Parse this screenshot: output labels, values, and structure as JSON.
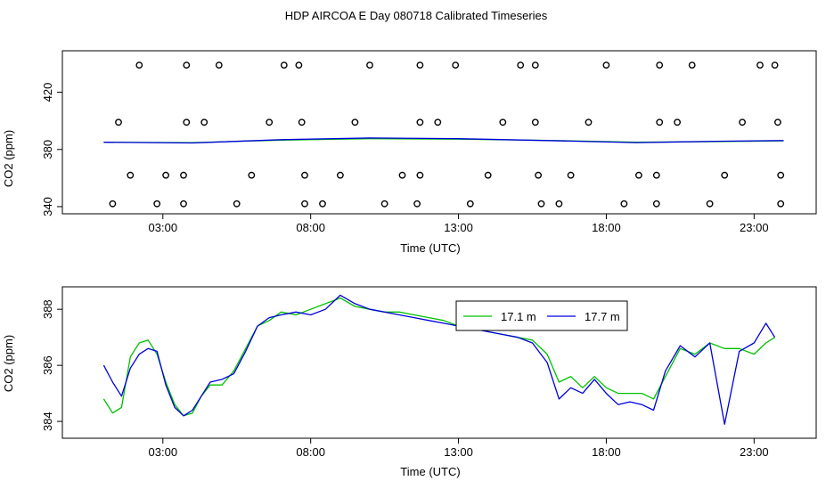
{
  "figure_title": "HDP AIRCOA E  Day 080718  Calibrated Timeseries",
  "colors": {
    "series_17_1": "#00c000",
    "series_17_7": "#0000dd",
    "axis": "#000000",
    "marker": "#000000"
  },
  "chart_data": [
    {
      "type": "scatter",
      "title": "",
      "xlabel": "Time (UTC)",
      "ylabel": "CO2 (ppm)",
      "x_ticks": [
        "03:00",
        "08:00",
        "13:00",
        "18:00",
        "23:00"
      ],
      "y_ticks": [
        "340",
        "380",
        "420"
      ],
      "xlim_hours": [
        -0.4,
        25.1
      ],
      "ylim": [
        335,
        449
      ],
      "grid": false,
      "marker_style": "open-circle",
      "points": [
        {
          "x": 1.3,
          "y": 342
        },
        {
          "x": 2.8,
          "y": 342
        },
        {
          "x": 3.7,
          "y": 342
        },
        {
          "x": 5.5,
          "y": 342
        },
        {
          "x": 7.8,
          "y": 342
        },
        {
          "x": 8.4,
          "y": 342
        },
        {
          "x": 10.5,
          "y": 342
        },
        {
          "x": 11.6,
          "y": 342
        },
        {
          "x": 13.4,
          "y": 342
        },
        {
          "x": 15.8,
          "y": 342
        },
        {
          "x": 16.4,
          "y": 342
        },
        {
          "x": 18.6,
          "y": 342
        },
        {
          "x": 19.7,
          "y": 342
        },
        {
          "x": 21.5,
          "y": 342
        },
        {
          "x": 23.9,
          "y": 342
        },
        {
          "x": 1.9,
          "y": 362
        },
        {
          "x": 3.1,
          "y": 362
        },
        {
          "x": 3.7,
          "y": 362
        },
        {
          "x": 6.0,
          "y": 362
        },
        {
          "x": 7.8,
          "y": 362
        },
        {
          "x": 9.0,
          "y": 362
        },
        {
          "x": 11.1,
          "y": 362
        },
        {
          "x": 11.7,
          "y": 362
        },
        {
          "x": 14.0,
          "y": 362
        },
        {
          "x": 15.7,
          "y": 362
        },
        {
          "x": 16.8,
          "y": 362
        },
        {
          "x": 19.1,
          "y": 362
        },
        {
          "x": 19.7,
          "y": 362
        },
        {
          "x": 22.0,
          "y": 362
        },
        {
          "x": 23.9,
          "y": 362
        },
        {
          "x": 1.5,
          "y": 399
        },
        {
          "x": 3.8,
          "y": 399
        },
        {
          "x": 4.4,
          "y": 399
        },
        {
          "x": 6.6,
          "y": 399
        },
        {
          "x": 7.7,
          "y": 399
        },
        {
          "x": 9.5,
          "y": 399
        },
        {
          "x": 11.7,
          "y": 399
        },
        {
          "x": 12.3,
          "y": 399
        },
        {
          "x": 14.5,
          "y": 399
        },
        {
          "x": 15.6,
          "y": 399
        },
        {
          "x": 17.4,
          "y": 399
        },
        {
          "x": 19.8,
          "y": 399
        },
        {
          "x": 20.4,
          "y": 399
        },
        {
          "x": 22.6,
          "y": 399
        },
        {
          "x": 23.8,
          "y": 399
        },
        {
          "x": 2.2,
          "y": 439
        },
        {
          "x": 3.8,
          "y": 439
        },
        {
          "x": 4.9,
          "y": 439
        },
        {
          "x": 7.1,
          "y": 439
        },
        {
          "x": 7.6,
          "y": 439
        },
        {
          "x": 10.0,
          "y": 439
        },
        {
          "x": 11.7,
          "y": 439
        },
        {
          "x": 12.9,
          "y": 439
        },
        {
          "x": 15.1,
          "y": 439
        },
        {
          "x": 15.6,
          "y": 439
        },
        {
          "x": 18.0,
          "y": 439
        },
        {
          "x": 19.8,
          "y": 439
        },
        {
          "x": 20.9,
          "y": 439
        },
        {
          "x": 23.2,
          "y": 439
        },
        {
          "x": 23.7,
          "y": 439
        }
      ],
      "series": [
        {
          "name": "17.1 m",
          "x": [
            1,
            4,
            7,
            10,
            13,
            16,
            19,
            22,
            24
          ],
          "y": [
            385,
            384.8,
            386.5,
            387.5,
            387.2,
            386.3,
            385,
            385.5,
            386
          ]
        },
        {
          "name": "17.7 m",
          "x": [
            1,
            4,
            7,
            10,
            13,
            16,
            19,
            22,
            24
          ],
          "y": [
            385,
            384.5,
            386.8,
            388,
            387.5,
            386.2,
            384.8,
            385.8,
            386.2
          ]
        }
      ]
    },
    {
      "type": "line",
      "title": "",
      "xlabel": "Time (UTC)",
      "ylabel": "CO2 (ppm)",
      "x_ticks": [
        "03:00",
        "08:00",
        "13:00",
        "18:00",
        "23:00"
      ],
      "y_ticks": [
        "384",
        "386",
        "388"
      ],
      "xlim_hours": [
        -0.4,
        25.1
      ],
      "ylim": [
        383.4,
        388.8
      ],
      "grid": false,
      "legend_position": "center-right",
      "series": [
        {
          "name": "17.1 m",
          "x": [
            1,
            1.3,
            1.6,
            1.9,
            2.2,
            2.5,
            2.8,
            3.1,
            3.4,
            3.7,
            4.0,
            4.3,
            4.6,
            5.0,
            5.4,
            5.8,
            6.2,
            6.6,
            7.0,
            7.5,
            8.0,
            8.5,
            9.0,
            9.5,
            10.0,
            10.5,
            11.0,
            11.5,
            12.0,
            12.5,
            13.0,
            13.5,
            14.0,
            14.5,
            15.0,
            15.5,
            16.0,
            16.4,
            16.8,
            17.2,
            17.6,
            18.0,
            18.4,
            18.8,
            19.2,
            19.6,
            20.0,
            20.5,
            21.0,
            21.5,
            22.0,
            22.5,
            23.0,
            23.4,
            23.7
          ],
          "y": [
            384.8,
            384.3,
            384.5,
            386.3,
            386.8,
            386.9,
            386.4,
            385.4,
            384.6,
            384.2,
            384.3,
            384.9,
            385.3,
            385.3,
            385.8,
            386.6,
            387.4,
            387.6,
            387.9,
            387.8,
            388.0,
            388.2,
            388.4,
            388.1,
            388.0,
            387.9,
            387.9,
            387.8,
            387.7,
            387.6,
            387.4,
            387.4,
            387.2,
            387.1,
            387.0,
            386.9,
            386.4,
            385.4,
            385.6,
            385.2,
            385.6,
            385.2,
            385.0,
            385.0,
            385.0,
            384.8,
            385.6,
            386.6,
            386.4,
            386.8,
            386.6,
            386.6,
            386.4,
            386.8,
            387.0
          ]
        },
        {
          "name": "17.7 m",
          "x": [
            1,
            1.3,
            1.6,
            1.9,
            2.2,
            2.5,
            2.8,
            3.1,
            3.4,
            3.7,
            4.0,
            4.3,
            4.6,
            5.0,
            5.4,
            5.8,
            6.2,
            6.6,
            7.0,
            7.5,
            8.0,
            8.5,
            9.0,
            9.5,
            10.0,
            10.5,
            11.0,
            11.5,
            12.0,
            12.5,
            13.0,
            13.5,
            14.0,
            14.5,
            15.0,
            15.5,
            16.0,
            16.4,
            16.8,
            17.2,
            17.6,
            18.0,
            18.4,
            18.8,
            19.2,
            19.6,
            20.0,
            20.5,
            21.0,
            21.5,
            22.0,
            22.5,
            23.0,
            23.4,
            23.7
          ],
          "y": [
            386.0,
            385.4,
            384.9,
            385.9,
            386.4,
            386.6,
            386.5,
            385.3,
            384.5,
            384.2,
            384.4,
            384.9,
            385.4,
            385.5,
            385.7,
            386.5,
            387.4,
            387.7,
            387.8,
            387.9,
            387.8,
            388.0,
            388.5,
            388.2,
            388.0,
            387.9,
            387.8,
            387.7,
            387.6,
            387.5,
            387.4,
            387.3,
            387.2,
            387.1,
            387.0,
            386.8,
            386.1,
            384.8,
            385.2,
            385.0,
            385.5,
            385.0,
            384.6,
            384.7,
            384.6,
            384.4,
            385.8,
            386.7,
            386.3,
            386.8,
            383.9,
            386.5,
            386.8,
            387.5,
            387.0
          ]
        }
      ]
    }
  ]
}
